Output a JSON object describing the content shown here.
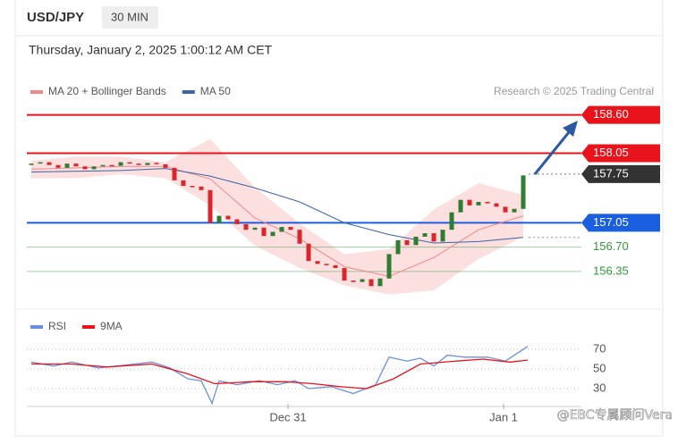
{
  "header": {
    "symbol": "USD/JPY",
    "interval": "30 MIN",
    "timestamp": "Thursday, January 2, 2025 1:00:12 AM CET"
  },
  "watermark": "@EBC专属顾问Vera",
  "chart_data": [
    {
      "type": "candlestick",
      "credit": "Research © 2025 Trading Central",
      "xlim": [
        -0.5,
        60.5
      ],
      "ylim": [
        155.9,
        158.8
      ],
      "candles": {
        "up_color": "#2e7d32",
        "down_color": "#d9262b",
        "x": [
          0,
          1,
          2,
          3,
          4,
          5,
          6,
          7,
          8,
          9,
          10,
          11,
          12,
          13,
          14,
          15,
          16,
          17,
          18,
          19,
          20,
          21,
          22,
          23,
          24,
          25,
          26,
          27,
          28,
          29,
          30,
          31,
          32,
          33,
          34,
          35,
          36,
          37,
          38,
          39,
          40,
          41,
          42,
          43,
          44,
          45,
          46,
          47,
          48,
          49,
          50,
          51,
          52,
          53,
          54,
          55
        ],
        "open": [
          157.88,
          157.9,
          157.92,
          157.88,
          157.84,
          157.9,
          157.86,
          157.82,
          157.86,
          157.88,
          157.87,
          157.92,
          157.9,
          157.88,
          157.91,
          157.89,
          157.84,
          157.66,
          157.58,
          157.57,
          157.52,
          157.05,
          157.15,
          157.1,
          157.03,
          156.95,
          156.98,
          156.86,
          156.92,
          156.99,
          156.95,
          156.75,
          156.5,
          156.46,
          156.44,
          156.4,
          156.22,
          156.2,
          156.24,
          156.14,
          156.25,
          156.6,
          156.8,
          156.73,
          156.85,
          156.9,
          156.78,
          156.95,
          157.2,
          157.38,
          157.3,
          157.35,
          157.33,
          157.28,
          157.2,
          157.25
        ],
        "close": [
          157.9,
          157.92,
          157.88,
          157.84,
          157.9,
          157.86,
          157.82,
          157.86,
          157.88,
          157.87,
          157.92,
          157.9,
          157.88,
          157.91,
          157.89,
          157.84,
          157.66,
          157.58,
          157.57,
          157.52,
          157.05,
          157.15,
          157.1,
          157.03,
          156.95,
          156.98,
          156.86,
          156.92,
          156.99,
          156.95,
          156.75,
          156.5,
          156.46,
          156.44,
          156.4,
          156.22,
          156.2,
          156.24,
          156.14,
          156.25,
          156.6,
          156.8,
          156.73,
          156.85,
          156.9,
          156.78,
          156.95,
          157.2,
          157.38,
          157.3,
          157.35,
          157.33,
          157.28,
          157.2,
          157.25,
          157.73
        ]
      },
      "series": [
        {
          "name": "MA 20 + Bollinger Bands",
          "color": "#f08a8a",
          "band_color": "#fcd9d9",
          "x": [
            0,
            5,
            10,
            15,
            20,
            25,
            30,
            35,
            40,
            45,
            50,
            55
          ],
          "values": [
            157.82,
            157.84,
            157.86,
            157.86,
            157.68,
            157.12,
            156.82,
            156.42,
            156.28,
            156.55,
            156.95,
            157.15
          ],
          "upper": [
            157.94,
            158.0,
            158.0,
            157.92,
            158.25,
            157.56,
            157.04,
            156.6,
            156.67,
            157.24,
            157.62,
            157.45
          ],
          "lower": [
            157.69,
            157.69,
            157.75,
            157.69,
            157.3,
            156.72,
            156.4,
            156.15,
            156.02,
            156.08,
            156.53,
            156.85
          ]
        },
        {
          "name": "MA 50",
          "color": "#3a64a8",
          "x": [
            0,
            5,
            10,
            15,
            20,
            25,
            30,
            35,
            40,
            45,
            50,
            55
          ],
          "values": [
            157.78,
            157.79,
            157.8,
            157.83,
            157.72,
            157.55,
            157.35,
            157.05,
            156.88,
            156.76,
            156.78,
            156.84
          ]
        }
      ],
      "levels": [
        {
          "value": 158.6,
          "label": "158.60",
          "color": "#e8131b",
          "style": "fill"
        },
        {
          "value": 158.05,
          "label": "158.05",
          "color": "#e8131b",
          "style": "fill"
        },
        {
          "value": 157.75,
          "label": "157.75",
          "color": "#333333",
          "style": "marker"
        },
        {
          "value": 157.05,
          "label": "157.05",
          "color": "#1a5fe0",
          "style": "fill"
        },
        {
          "value": 156.7,
          "label": "156.70",
          "color": "#2e9a3a",
          "style": "text"
        },
        {
          "value": 156.35,
          "label": "156.35",
          "color": "#2e9a3a",
          "style": "text"
        }
      ]
    },
    {
      "type": "line",
      "xlim": [
        -0.5,
        60.5
      ],
      "ylim": [
        10,
        90
      ],
      "yticks": [
        30,
        50,
        70
      ],
      "xticks": [
        {
          "value": 28.7,
          "label": "Dec 31"
        },
        {
          "value": 52.8,
          "label": "Jan 1"
        }
      ],
      "series": [
        {
          "name": "RSI",
          "color": "#6b8fe0",
          "x": [
            0,
            2.5,
            4.5,
            7.5,
            10.5,
            13.5,
            15.5,
            17.5,
            19,
            20.2,
            21,
            23,
            25.5,
            27.5,
            29.5,
            31,
            33.5,
            36,
            38.5,
            40,
            42,
            43.5,
            45,
            46.5,
            48.5,
            51,
            53,
            55.5
          ],
          "values": [
            57,
            53,
            57,
            51,
            54,
            57,
            51,
            40,
            38,
            15,
            38,
            34,
            38,
            34,
            38,
            30,
            32,
            25,
            34,
            62,
            58,
            61,
            53,
            64,
            62,
            62,
            58,
            73
          ]
        },
        {
          "name": "9MA",
          "color": "#e8131b",
          "x": [
            0,
            4.5,
            8.5,
            13.5,
            17.5,
            20.5,
            24.5,
            28.5,
            31.5,
            34.5,
            37.5,
            40.5,
            43.5,
            47.5,
            50.5,
            53.5,
            55.5
          ],
          "values": [
            55,
            55,
            52,
            55,
            45,
            35,
            37,
            37,
            35,
            32,
            30,
            40,
            55,
            58,
            60,
            57,
            59
          ]
        }
      ]
    }
  ]
}
